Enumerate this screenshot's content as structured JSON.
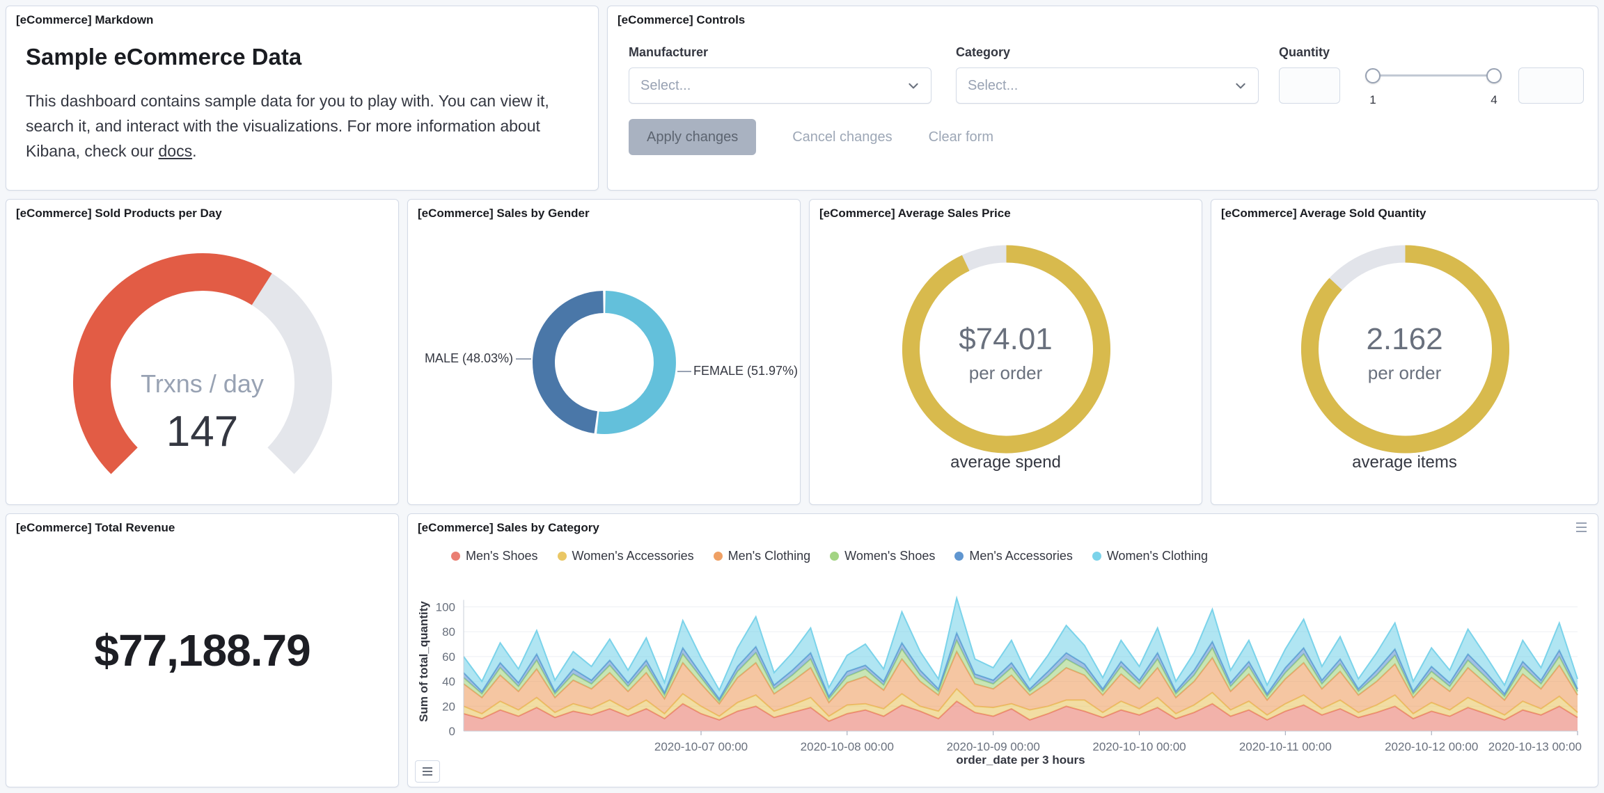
{
  "page": {
    "background": "#F5F7FA",
    "panel_border": "#D3DAE6"
  },
  "panels": {
    "markdown": {
      "title": "[eCommerce] Markdown",
      "heading": "Sample eCommerce Data",
      "body_1": "This dashboard contains sample data for you to play with. You can view it, search it, and interact with the visualizations. For more information about Kibana, check our ",
      "link": "docs",
      "body_2": "."
    },
    "controls": {
      "title": "[eCommerce] Controls",
      "manufacturer": {
        "label": "Manufacturer",
        "placeholder": "Select..."
      },
      "category": {
        "label": "Category",
        "placeholder": "Select..."
      },
      "quantity": {
        "label": "Quantity",
        "min": "1",
        "max": "4"
      },
      "buttons": {
        "apply": "Apply changes",
        "cancel": "Cancel changes",
        "clear": "Clear form"
      }
    },
    "gauge": {
      "title": "[eCommerce] Sold Products per Day"
    },
    "gender": {
      "title": "[eCommerce] Sales by Gender"
    },
    "avg_price": {
      "title": "[eCommerce] Average Sales Price"
    },
    "avg_qty": {
      "title": "[eCommerce] Average Sold Quantity"
    },
    "revenue": {
      "title": "[eCommerce] Total Revenue"
    },
    "category_chart": {
      "title": "[eCommerce] Sales by Category"
    }
  },
  "chart_data": [
    {
      "id": "sold-products-per-day",
      "type": "gauge",
      "label": "Trxns / day",
      "value": "147",
      "fraction": 0.62,
      "color": "#E25C45",
      "track_color": "#E4E6EB"
    },
    {
      "id": "sales-by-gender",
      "type": "pie",
      "slices": [
        {
          "label": "FEMALE (51.97%)",
          "value": 51.97,
          "color": "#63C0DB"
        },
        {
          "label": "MALE (48.03%)",
          "value": 48.03,
          "color": "#4A77A8"
        }
      ]
    },
    {
      "id": "average-sales-price",
      "type": "goal",
      "value": "$74.01",
      "sub_label": "per order",
      "caption": "average spend",
      "fraction": 0.93,
      "color": "#D8BA4D",
      "track_color": "#E2E4EA"
    },
    {
      "id": "average-sold-quantity",
      "type": "goal",
      "value": "2.162",
      "sub_label": "per order",
      "caption": "average items",
      "fraction": 0.87,
      "color": "#D8BA4D",
      "track_color": "#E2E4EA"
    },
    {
      "id": "total-revenue",
      "type": "metric",
      "value": "$77,188.79"
    },
    {
      "id": "sales-by-category",
      "type": "area",
      "stacked": true,
      "xlabel": "order_date per 3 hours",
      "ylabel": "Sum of total_quantity",
      "ylim": [
        0,
        112
      ],
      "y_ticks": [
        0,
        20,
        40,
        60,
        80,
        100
      ],
      "x_points": 62,
      "x_tick_indices": [
        13,
        21,
        29,
        37,
        45,
        53,
        61
      ],
      "x_tick_labels": [
        "2020-10-07 00:00",
        "2020-10-08 00:00",
        "2020-10-09 00:00",
        "2020-10-10 00:00",
        "2020-10-11 00:00",
        "2020-10-12 00:00",
        "2020-10-13 00:00"
      ],
      "series": [
        {
          "name": "Men's Shoes",
          "color": "#EA7E72",
          "values": [
            14,
            10,
            17,
            12,
            19,
            11,
            16,
            13,
            18,
            12,
            18,
            10,
            22,
            14,
            9,
            16,
            20,
            11,
            15,
            19,
            8,
            14,
            17,
            12,
            21,
            16,
            10,
            24,
            15,
            12,
            18,
            9,
            14,
            20,
            16,
            11,
            17,
            13,
            19,
            10,
            15,
            22,
            12,
            17,
            9,
            16,
            21,
            13,
            18,
            11,
            15,
            20,
            10,
            16,
            12,
            19,
            14,
            9,
            17,
            13,
            20,
            11
          ]
        },
        {
          "name": "Women's Accessories",
          "color": "#EAC765",
          "values": [
            6,
            4,
            7,
            5,
            8,
            4,
            6,
            5,
            7,
            5,
            7,
            4,
            8,
            6,
            3,
            7,
            9,
            5,
            6,
            8,
            4,
            7,
            5,
            6,
            9,
            4,
            6,
            10,
            5,
            7,
            4,
            8,
            6,
            5,
            9,
            4,
            7,
            5,
            8,
            4,
            6,
            9,
            5,
            7,
            4,
            6,
            8,
            5,
            7,
            4,
            6,
            9,
            4,
            7,
            5,
            8,
            6,
            4,
            7,
            5,
            8,
            4
          ]
        },
        {
          "name": "Men's Clothing",
          "color": "#EFA064",
          "values": [
            18,
            13,
            21,
            15,
            23,
            12,
            19,
            16,
            22,
            15,
            22,
            12,
            25,
            18,
            10,
            20,
            26,
            14,
            19,
            24,
            11,
            18,
            22,
            15,
            28,
            20,
            13,
            30,
            18,
            15,
            23,
            12,
            19,
            26,
            20,
            14,
            22,
            16,
            24,
            13,
            19,
            28,
            15,
            22,
            12,
            20,
            26,
            16,
            23,
            14,
            19,
            25,
            13,
            20,
            15,
            24,
            18,
            12,
            22,
            16,
            25,
            14
          ]
        },
        {
          "name": "Women's Shoes",
          "color": "#A3D483",
          "values": [
            5,
            3,
            6,
            4,
            7,
            3,
            5,
            4,
            6,
            4,
            6,
            3,
            7,
            5,
            2,
            5,
            8,
            4,
            5,
            7,
            3,
            5,
            6,
            4,
            8,
            5,
            3,
            9,
            5,
            4,
            6,
            3,
            5,
            7,
            5,
            3,
            6,
            4,
            7,
            3,
            5,
            8,
            4,
            6,
            3,
            5,
            7,
            4,
            6,
            3,
            5,
            7,
            3,
            5,
            4,
            6,
            5,
            3,
            6,
            4,
            7,
            3
          ]
        },
        {
          "name": "Men's Accessories",
          "color": "#6096D0",
          "values": [
            4,
            2,
            4,
            3,
            5,
            2,
            4,
            3,
            4,
            3,
            4,
            2,
            5,
            3,
            2,
            4,
            5,
            3,
            4,
            5,
            2,
            4,
            3,
            3,
            5,
            4,
            2,
            6,
            3,
            3,
            4,
            2,
            4,
            5,
            4,
            2,
            4,
            3,
            5,
            2,
            4,
            5,
            3,
            4,
            2,
            4,
            5,
            3,
            4,
            2,
            4,
            5,
            2,
            4,
            3,
            5,
            4,
            2,
            4,
            3,
            5,
            2
          ]
        },
        {
          "name": "Women's Clothing",
          "color": "#7BD3EA",
          "values": [
            13,
            8,
            16,
            11,
            19,
            9,
            14,
            11,
            17,
            10,
            18,
            8,
            22,
            13,
            7,
            15,
            24,
            10,
            14,
            20,
            7,
            13,
            17,
            10,
            25,
            15,
            8,
            28,
            12,
            10,
            18,
            7,
            13,
            22,
            15,
            9,
            17,
            11,
            20,
            8,
            14,
            26,
            10,
            17,
            7,
            15,
            23,
            11,
            18,
            8,
            14,
            21,
            8,
            15,
            10,
            20,
            13,
            7,
            17,
            10,
            22,
            8
          ]
        }
      ]
    }
  ]
}
